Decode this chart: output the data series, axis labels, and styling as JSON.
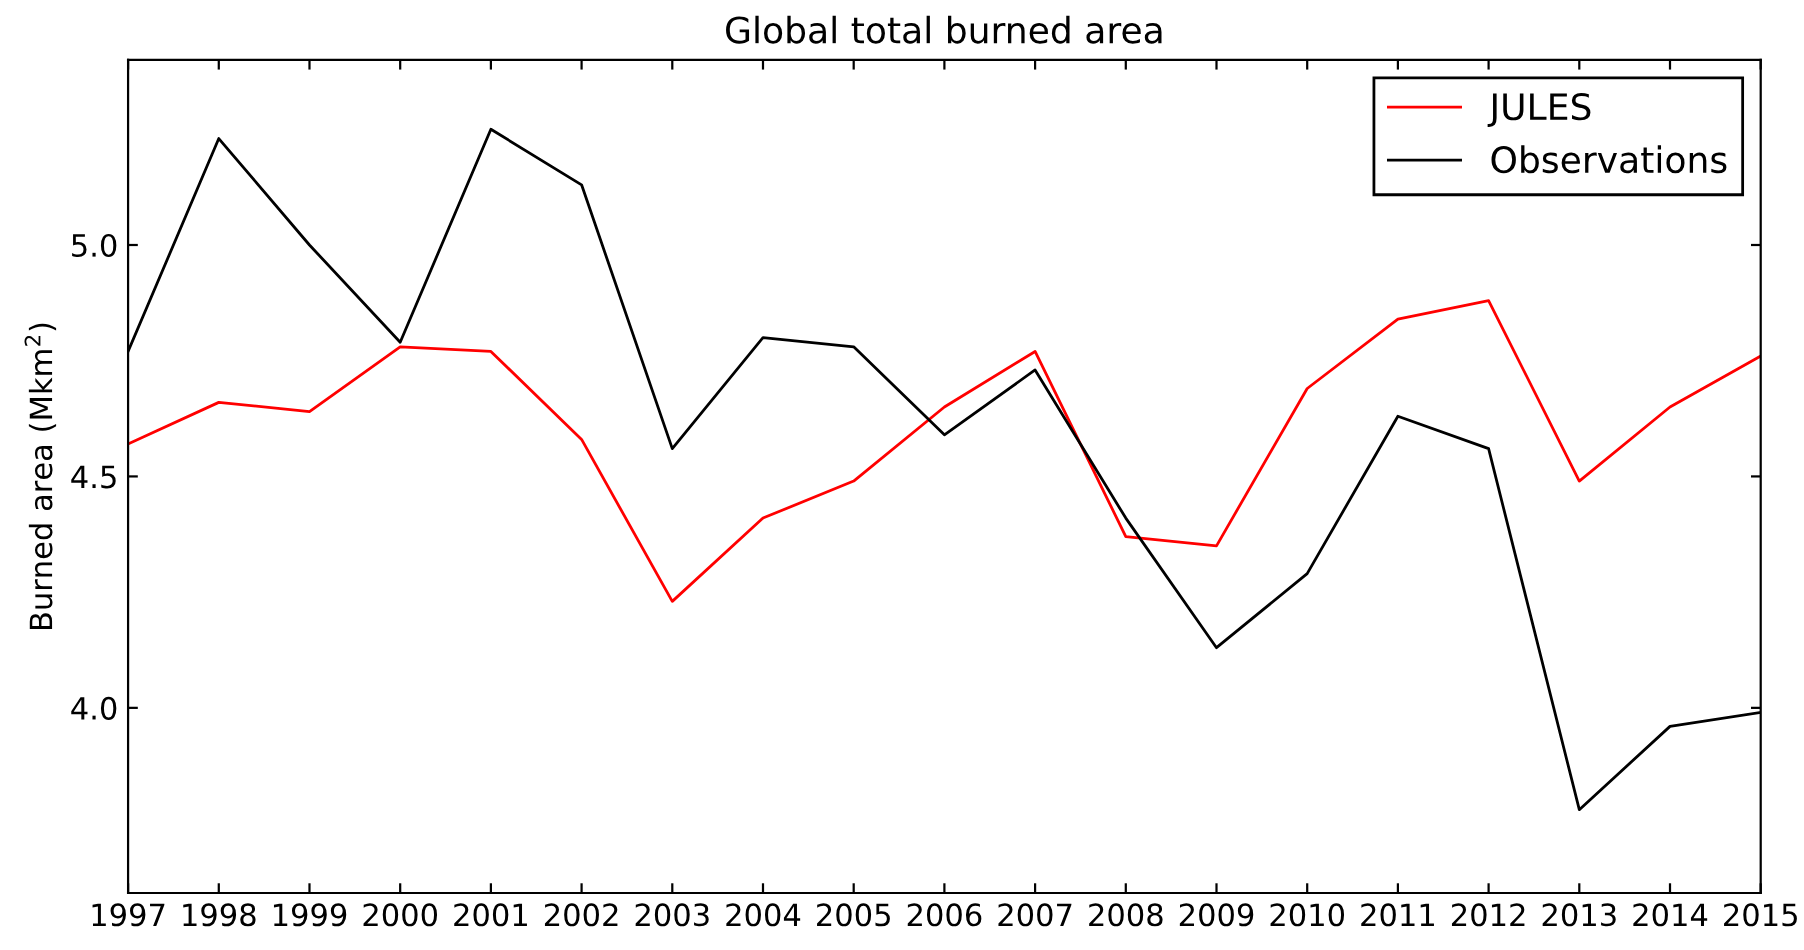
{
  "chart_data": {
    "type": "line",
    "title": "Global total burned area",
    "ylabel": "Burned area (Mkm$^{2}$)",
    "x": [
      1997,
      1998,
      1999,
      2000,
      2001,
      2002,
      2003,
      2004,
      2005,
      2006,
      2007,
      2008,
      2009,
      2010,
      2011,
      2012,
      2013,
      2014,
      2015
    ],
    "series": [
      {
        "name": "JULES",
        "color": "#ff0000",
        "values": [
          4.57,
          4.66,
          4.64,
          4.78,
          4.77,
          4.58,
          4.23,
          4.41,
          4.49,
          4.65,
          4.77,
          4.37,
          4.35,
          4.69,
          4.84,
          4.88,
          4.49,
          4.65,
          4.76
        ]
      },
      {
        "name": "Observations",
        "color": "#000000",
        "values": [
          4.77,
          5.23,
          5.0,
          4.79,
          5.25,
          5.13,
          4.56,
          4.8,
          4.78,
          4.59,
          4.73,
          4.41,
          4.13,
          4.29,
          4.63,
          4.56,
          3.78,
          3.96,
          3.99
        ]
      }
    ],
    "xlim": [
      1997,
      2015
    ],
    "xticks": [
      1997,
      1998,
      1999,
      2000,
      2001,
      2002,
      2003,
      2004,
      2005,
      2006,
      2007,
      2008,
      2009,
      2010,
      2011,
      2012,
      2013,
      2014,
      2015
    ],
    "ylim": [
      3.6,
      5.4
    ],
    "yticks": [
      {
        "value": 4,
        "label": "4.0"
      },
      {
        "value": 4.5,
        "label": "4.5"
      },
      {
        "value": 5,
        "label": "5.0"
      }
    ],
    "legend": "top right",
    "grid": false,
    "marker": "none",
    "line_style": "solid"
  }
}
